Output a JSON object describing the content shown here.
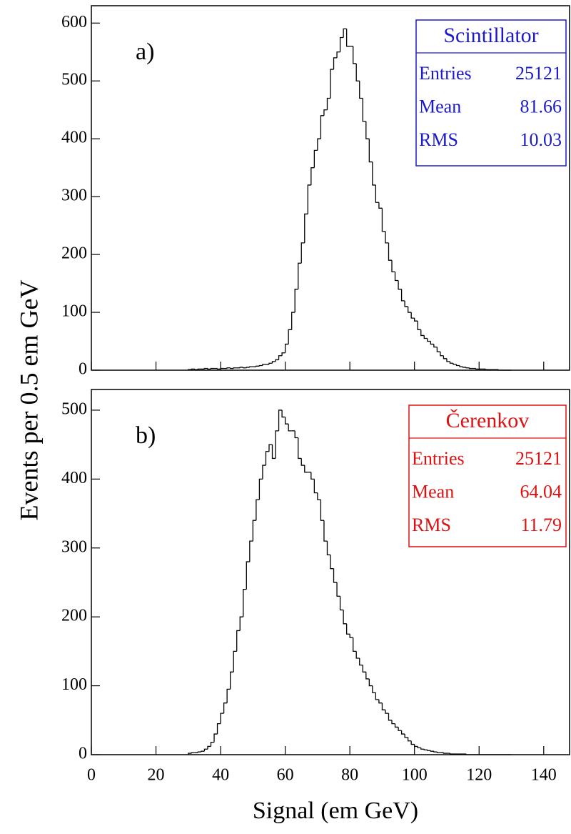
{
  "chart_data": [
    {
      "type": "histogram",
      "panel_label": "a)",
      "ylabel": "Events per 0.5 em GeV",
      "color": "#000000",
      "bins": [
        30,
        31,
        32,
        33,
        34,
        35,
        36,
        37,
        38,
        39,
        40,
        41,
        42,
        43,
        44,
        45,
        46,
        47,
        48,
        49,
        50,
        51,
        52,
        53,
        54,
        55,
        56,
        57,
        58,
        59,
        60,
        61,
        62,
        63,
        64,
        65,
        66,
        67,
        68,
        69,
        70,
        71,
        72,
        73,
        74,
        75,
        76,
        77,
        78,
        79,
        80,
        81,
        82,
        83,
        84,
        85,
        86,
        87,
        88,
        89,
        90,
        91,
        92,
        93,
        94,
        95,
        96,
        97,
        98,
        99,
        100,
        101,
        102,
        103,
        104,
        105,
        106,
        107,
        108,
        109,
        110,
        111,
        112,
        113,
        114,
        115,
        116,
        117,
        118,
        119,
        120,
        121,
        122,
        123,
        124,
        125,
        126,
        127,
        128,
        129,
        130
      ],
      "values": [
        1,
        2,
        1,
        2,
        2,
        3,
        2,
        3,
        3,
        2,
        3,
        3,
        4,
        3,
        4,
        4,
        5,
        4,
        5,
        6,
        6,
        7,
        8,
        10,
        10,
        12,
        15,
        18,
        25,
        30,
        45,
        70,
        100,
        140,
        185,
        220,
        270,
        320,
        350,
        380,
        400,
        440,
        450,
        470,
        520,
        540,
        550,
        575,
        590,
        560,
        560,
        530,
        500,
        470,
        430,
        400,
        360,
        320,
        290,
        280,
        240,
        220,
        190,
        170,
        155,
        140,
        120,
        110,
        100,
        90,
        85,
        70,
        60,
        55,
        50,
        45,
        40,
        32,
        25,
        20,
        15,
        12,
        10,
        8,
        6,
        5,
        4,
        3,
        3,
        2,
        2,
        2,
        1,
        1,
        1,
        1,
        0,
        0,
        0,
        0
      ],
      "xlim": [
        0,
        148
      ],
      "xticks": [
        0,
        20,
        40,
        60,
        80,
        100,
        120,
        140
      ],
      "ylim": [
        0,
        630
      ],
      "yticks": [
        0,
        100,
        200,
        300,
        400,
        500,
        600
      ],
      "stats": {
        "title": "Scintillator",
        "color": "#1a1acc",
        "rows": [
          {
            "label": "Entries",
            "value": 25121
          },
          {
            "label": "Mean",
            "value": 81.66
          },
          {
            "label": "RMS",
            "value": 10.03
          }
        ]
      }
    },
    {
      "type": "histogram",
      "panel_label": "b)",
      "xlabel": "Signal (em GeV)",
      "color": "#000000",
      "bins": [
        30,
        31,
        32,
        33,
        34,
        35,
        36,
        37,
        38,
        39,
        40,
        41,
        42,
        43,
        44,
        45,
        46,
        47,
        48,
        49,
        50,
        51,
        52,
        53,
        54,
        55,
        56,
        57,
        58,
        59,
        60,
        61,
        62,
        63,
        64,
        65,
        66,
        67,
        68,
        69,
        70,
        71,
        72,
        73,
        74,
        75,
        76,
        77,
        78,
        79,
        80,
        81,
        82,
        83,
        84,
        85,
        86,
        87,
        88,
        89,
        90,
        91,
        92,
        93,
        94,
        95,
        96,
        97,
        98,
        99,
        100,
        101,
        102,
        103,
        104,
        105,
        106,
        107,
        108,
        109,
        110,
        111,
        112,
        113,
        114,
        115,
        116,
        117,
        118,
        119,
        120,
        121,
        122,
        123,
        124,
        125,
        126,
        127,
        128,
        129,
        130
      ],
      "values": [
        2,
        3,
        3,
        4,
        5,
        8,
        12,
        18,
        30,
        45,
        60,
        75,
        95,
        120,
        150,
        180,
        200,
        240,
        280,
        310,
        340,
        370,
        400,
        420,
        440,
        450,
        430,
        470,
        500,
        490,
        480,
        470,
        470,
        460,
        430,
        420,
        410,
        410,
        400,
        380,
        370,
        340,
        310,
        290,
        270,
        250,
        230,
        210,
        190,
        175,
        170,
        150,
        140,
        130,
        120,
        110,
        100,
        90,
        80,
        75,
        65,
        60,
        50,
        45,
        40,
        35,
        30,
        25,
        20,
        15,
        12,
        10,
        8,
        7,
        6,
        5,
        4,
        3,
        3,
        2,
        2,
        1,
        1,
        1,
        1,
        1,
        0,
        0,
        0,
        0,
        0,
        0,
        0,
        0,
        0,
        0,
        0,
        0,
        0,
        0
      ],
      "xlim": [
        0,
        148
      ],
      "xticks": [
        0,
        20,
        40,
        60,
        80,
        100,
        120,
        140
      ],
      "ylim": [
        0,
        530
      ],
      "yticks": [
        0,
        100,
        200,
        300,
        400,
        500
      ],
      "stats": {
        "title": "Čerenkov",
        "color": "#dd1111",
        "rows": [
          {
            "label": "Entries",
            "value": 25121
          },
          {
            "label": "Mean",
            "value": 64.04
          },
          {
            "label": "RMS",
            "value": 11.79
          }
        ]
      }
    }
  ]
}
